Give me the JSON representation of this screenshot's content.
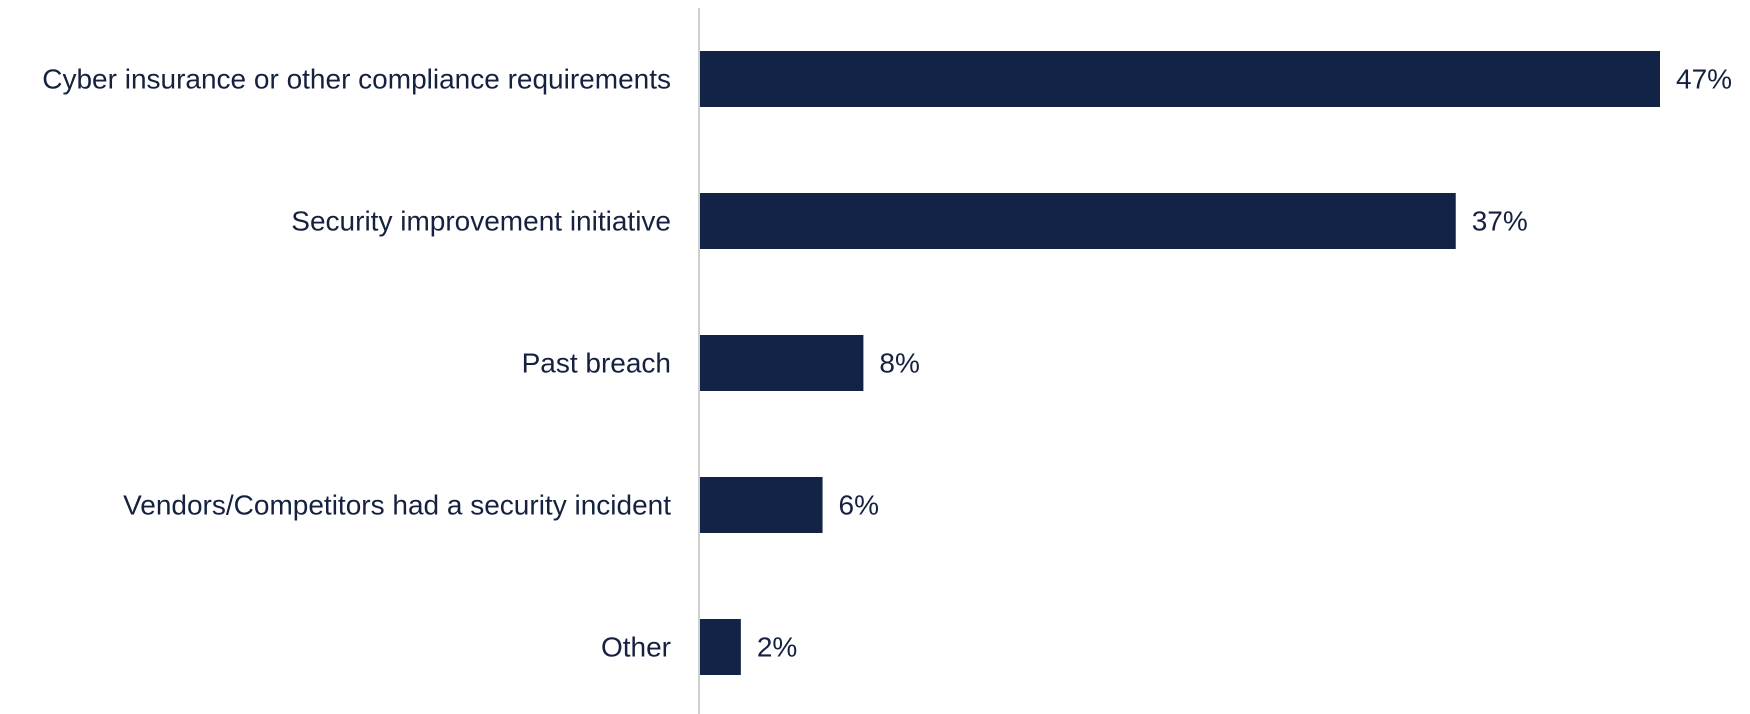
{
  "colors": {
    "bar": "#132345",
    "text": "#15213f",
    "axis": "#cfcfcf"
  },
  "chart_data": {
    "type": "bar",
    "orientation": "horizontal",
    "categories": [
      "Cyber insurance or other compliance requirements",
      "Security improvement initiative",
      "Past breach",
      "Vendors/Competitors had a security incident",
      "Other"
    ],
    "values": [
      47,
      37,
      8,
      6,
      2
    ],
    "value_labels": [
      "47%",
      "37%",
      "8%",
      "6%",
      "2%"
    ],
    "unit": "%",
    "xlim": [
      0,
      47
    ],
    "grid": false,
    "legend": "none"
  }
}
